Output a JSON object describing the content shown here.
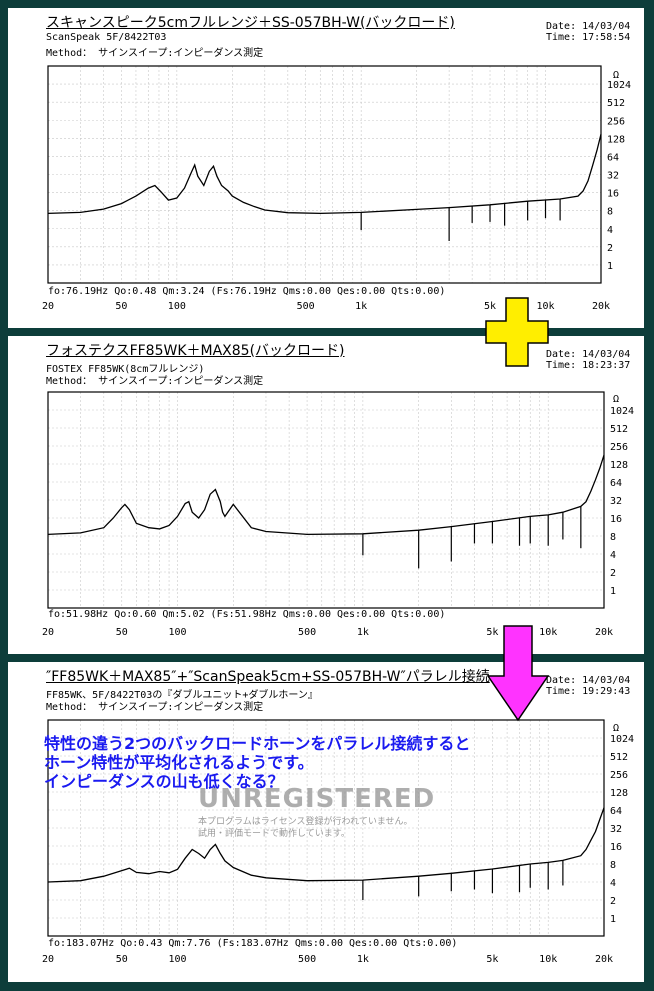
{
  "panels": [
    {
      "title": "スキャンスピーク5cmフルレンジ＋SS-057BH-W(バックロード)",
      "line1": "ScanSpeak 5F/8422T03",
      "line2": "Method： サインスイープ:インピーダンス測定",
      "date": "Date: 14/03/04",
      "time": "Time: 17:58:54",
      "params": "fo:76.19Hz  Qo:0.48 Qm:3.24  (Fs:76.19Hz  Qms:0.00 Qes:0.00 Qts:0.00)"
    },
    {
      "title": "フォステクスFF85WK＋MAX85(バックロード)",
      "line1": "FOSTEX FF85WK(8cmフルレンジ)",
      "line2": "Method： サインスイープ:インピーダンス測定",
      "date": "Date: 14/03/04",
      "time": "Time: 18:23:37",
      "params": "fo:51.98Hz  Qo:0.60 Qm:5.02  (Fs:51.98Hz  Qms:0.00 Qes:0.00 Qts:0.00)"
    },
    {
      "title": "″FF85WK＋MAX85″+″ScanSpeak5cm+SS-057BH-W″パラレル接続",
      "line1": "FF85WK、5F/8422T03の『ダブルユニット+ダブルホーン』",
      "line2": "Method： サインスイープ:インピーダンス測定",
      "date": "Date: 14/03/04",
      "time": "Time: 19:29:43",
      "params": "fo:183.07Hz  Qo:0.43 Qm:7.76  (Fs:183.07Hz  Qms:0.00 Qes:0.00 Qts:0.00)"
    }
  ],
  "annotation": {
    "lines": [
      "特性の違う2つのバックロードホーンをパラレル接続すると",
      "ホーン特性が平均化されるようです。",
      "インピーダンスの山も低くなる？"
    ],
    "watermark": "UNREGISTERED",
    "watermark_sub": [
      "本プログラムはライセンス登録が行われていません。",
      "試用・評価モードで動作しています。"
    ]
  },
  "colors": {
    "background": "#0d3d3a",
    "plus_arrow": "#ffee00",
    "down_arrow": "#ff33ff",
    "annotation": "#1a1af0"
  },
  "chart_data": [
    {
      "type": "line",
      "x_scale": "log",
      "xlim": [
        20,
        20000
      ],
      "y_scale": "log",
      "ylim": [
        0.5,
        2048
      ],
      "y_unit": "Ω",
      "grid": true,
      "x_tick_labels": [
        "20",
        "50",
        "100",
        "500",
        "1k",
        "5k",
        "10k",
        "20k"
      ],
      "x_tick_values": [
        20,
        50,
        100,
        500,
        1000,
        5000,
        10000,
        20000
      ],
      "y_tick_labels": [
        "1024",
        "512",
        "256",
        "128",
        "64",
        "32",
        "16",
        "8",
        "4",
        "2",
        "1"
      ],
      "y_tick_values": [
        1024,
        512,
        256,
        128,
        64,
        32,
        16,
        8,
        4,
        2,
        1
      ],
      "series": [
        {
          "x": [
            20,
            30,
            40,
            50,
            60,
            70,
            76,
            82,
            90,
            100,
            110,
            120,
            125,
            130,
            140,
            150,
            158,
            165,
            175,
            190,
            200,
            230,
            260,
            300,
            400,
            600,
            1000,
            2000,
            3000,
            5000,
            8000,
            12000,
            15000,
            16000,
            17000,
            18000,
            19000,
            20000
          ],
          "y": [
            7.2,
            7.5,
            8.5,
            10.5,
            14,
            19,
            21,
            16.5,
            12,
            13,
            19,
            35,
            46,
            30,
            21,
            36,
            44,
            30,
            21,
            17,
            14,
            11,
            9.5,
            8.2,
            7.4,
            7.2,
            7.5,
            8.4,
            9,
            10,
            11.5,
            12.5,
            14,
            17,
            25,
            45,
            80,
            150
          ]
        }
      ],
      "spikes": [
        {
          "x": 1000,
          "y": 3.8
        },
        {
          "x": 3000,
          "y": 2.5
        },
        {
          "x": 4000,
          "y": 5
        },
        {
          "x": 5000,
          "y": 5.2
        },
        {
          "x": 6000,
          "y": 4.5
        },
        {
          "x": 8000,
          "y": 5.5
        },
        {
          "x": 10000,
          "y": 6
        },
        {
          "x": 12000,
          "y": 5.5
        }
      ]
    },
    {
      "type": "line",
      "x_scale": "log",
      "xlim": [
        20,
        20000
      ],
      "y_scale": "log",
      "ylim": [
        0.5,
        2048
      ],
      "y_unit": "Ω",
      "grid": true,
      "x_tick_labels": [
        "20",
        "50",
        "100",
        "500",
        "1k",
        "5k",
        "10k",
        "20k"
      ],
      "x_tick_values": [
        20,
        50,
        100,
        500,
        1000,
        5000,
        10000,
        20000
      ],
      "y_tick_labels": [
        "1024",
        "512",
        "256",
        "128",
        "64",
        "32",
        "16",
        "8",
        "4",
        "2",
        "1"
      ],
      "y_tick_values": [
        1024,
        512,
        256,
        128,
        64,
        32,
        16,
        8,
        4,
        2,
        1
      ],
      "series": [
        {
          "x": [
            20,
            30,
            40,
            45,
            50,
            52,
            55,
            60,
            70,
            80,
            90,
            100,
            110,
            115,
            120,
            130,
            140,
            150,
            160,
            170,
            175,
            180,
            200,
            250,
            300,
            500,
            1000,
            2000,
            3000,
            5000,
            8000,
            10000,
            12000,
            15000,
            16000,
            17000,
            18000,
            19000,
            20000
          ],
          "y": [
            8.5,
            9,
            11,
            16,
            24,
            27,
            22,
            13,
            11,
            10.5,
            12,
            17,
            28,
            30,
            20,
            16,
            22,
            40,
            48,
            30,
            20,
            17,
            27,
            11,
            9.5,
            8.5,
            8.7,
            10,
            11.5,
            14,
            17,
            18,
            20,
            25,
            30,
            45,
            70,
            110,
            180
          ]
        }
      ],
      "spikes": [
        {
          "x": 1000,
          "y": 3.8
        },
        {
          "x": 2000,
          "y": 2.3
        },
        {
          "x": 3000,
          "y": 3
        },
        {
          "x": 4000,
          "y": 6
        },
        {
          "x": 5000,
          "y": 6
        },
        {
          "x": 7000,
          "y": 5.5
        },
        {
          "x": 8000,
          "y": 6
        },
        {
          "x": 10000,
          "y": 5.5
        },
        {
          "x": 12000,
          "y": 7
        },
        {
          "x": 15000,
          "y": 5
        }
      ]
    },
    {
      "type": "line",
      "x_scale": "log",
      "xlim": [
        20,
        20000
      ],
      "y_scale": "log",
      "ylim": [
        0.5,
        2048
      ],
      "y_unit": "Ω",
      "grid": true,
      "x_tick_labels": [
        "20",
        "50",
        "100",
        "500",
        "1k",
        "5k",
        "10k",
        "20k"
      ],
      "x_tick_values": [
        20,
        50,
        100,
        500,
        1000,
        5000,
        10000,
        20000
      ],
      "y_tick_labels": [
        "1024",
        "512",
        "256",
        "128",
        "64",
        "32",
        "16",
        "8",
        "4",
        "2",
        "1"
      ],
      "y_tick_values": [
        1024,
        512,
        256,
        128,
        64,
        32,
        16,
        8,
        4,
        2,
        1
      ],
      "series": [
        {
          "x": [
            20,
            30,
            40,
            50,
            55,
            60,
            70,
            80,
            90,
            100,
            110,
            120,
            130,
            140,
            150,
            160,
            170,
            180,
            200,
            250,
            300,
            500,
            1000,
            2000,
            3000,
            5000,
            8000,
            10000,
            12000,
            15000,
            16000,
            17000,
            18000,
            19000,
            20000
          ],
          "y": [
            4,
            4.2,
            5,
            6.2,
            6.8,
            5.8,
            5.5,
            6,
            5.7,
            6.5,
            10,
            14,
            12,
            10,
            14,
            17,
            12,
            9,
            7,
            5.2,
            4.7,
            4.2,
            4.3,
            5,
            5.6,
            6.6,
            8,
            8.5,
            9.2,
            11,
            14,
            20,
            28,
            45,
            70
          ]
        }
      ],
      "spikes": [
        {
          "x": 1000,
          "y": 2
        },
        {
          "x": 2000,
          "y": 2.3
        },
        {
          "x": 3000,
          "y": 2.8
        },
        {
          "x": 4000,
          "y": 3
        },
        {
          "x": 5000,
          "y": 2.6
        },
        {
          "x": 7000,
          "y": 2.7
        },
        {
          "x": 8000,
          "y": 3.2
        },
        {
          "x": 10000,
          "y": 3
        },
        {
          "x": 12000,
          "y": 3.5
        }
      ]
    }
  ]
}
